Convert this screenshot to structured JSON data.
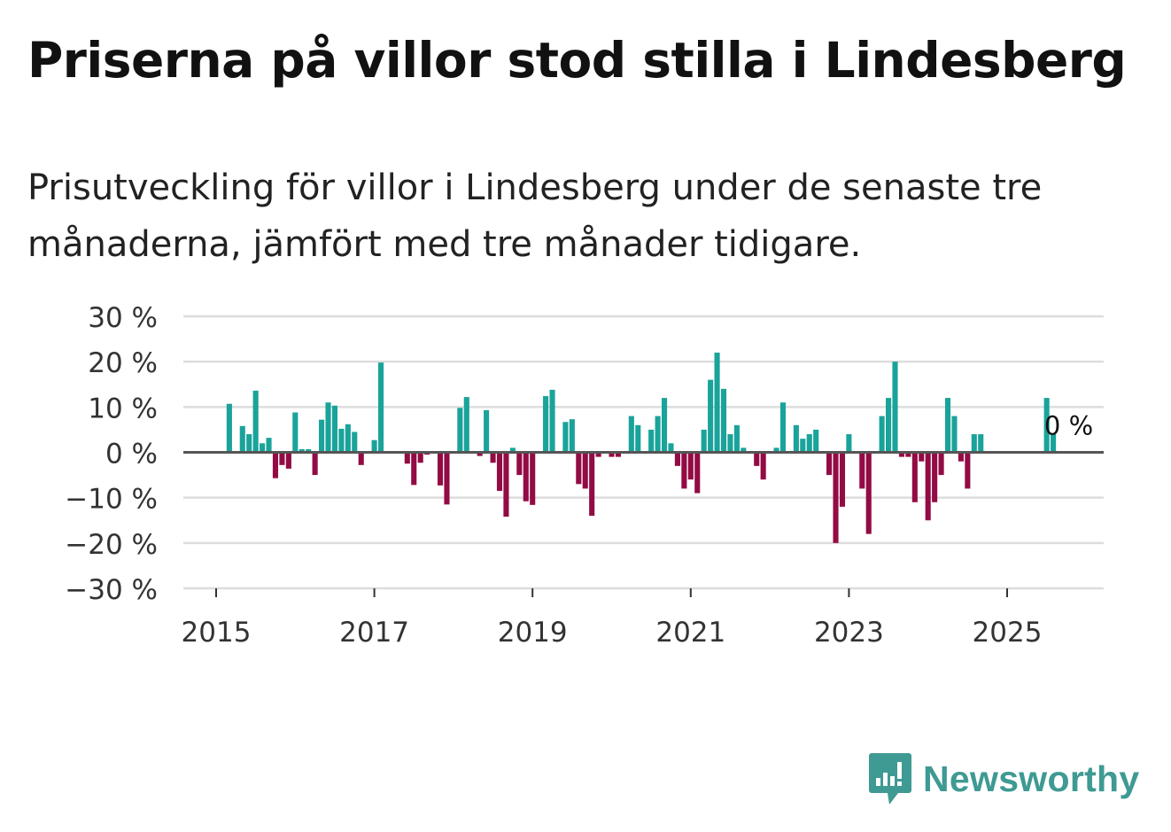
{
  "title": "Priserna på villor stod stilla i Lindesberg",
  "subtitle": "Prisutveckling för villor i Lindesberg under de senaste tre månaderna, jämfört med tre månader tidigare.",
  "brand": {
    "name": "Newsworthy"
  },
  "colors": {
    "positive": "#1aa39a",
    "negative": "#930b44",
    "grid": "#dddddd",
    "zero_line": "#555555",
    "brand": "#3e9a93"
  },
  "chart_data": {
    "type": "bar",
    "title": "Prisutveckling för villor i Lindesberg",
    "ylim": [
      -30,
      30
    ],
    "y_ticks": [
      {
        "value": 30,
        "label": "30 %"
      },
      {
        "value": 20,
        "label": "20 %"
      },
      {
        "value": 10,
        "label": "10 %"
      },
      {
        "value": 0,
        "label": "0 %"
      },
      {
        "value": -10,
        "label": "−10 %"
      },
      {
        "value": -20,
        "label": "−20 %"
      },
      {
        "value": -30,
        "label": "−30 %"
      }
    ],
    "x_ticks": [
      {
        "year": 2015,
        "label": "2015"
      },
      {
        "year": 2017,
        "label": "2017"
      },
      {
        "year": 2019,
        "label": "2019"
      },
      {
        "year": 2021,
        "label": "2021"
      },
      {
        "year": 2023,
        "label": "2023"
      },
      {
        "year": 2025,
        "label": "2025"
      }
    ],
    "last_value_label": "0 %",
    "series": [
      {
        "name": "Prisutveckling",
        "points": [
          {
            "month": "2015-03",
            "value": 10.7
          },
          {
            "month": "2015-05",
            "value": 5.8
          },
          {
            "month": "2015-06",
            "value": 4.0
          },
          {
            "month": "2015-07",
            "value": 13.6
          },
          {
            "month": "2015-08",
            "value": 2.0
          },
          {
            "month": "2015-09",
            "value": 3.2
          },
          {
            "month": "2015-10",
            "value": -5.7
          },
          {
            "month": "2015-11",
            "value": -2.8
          },
          {
            "month": "2015-12",
            "value": -3.6
          },
          {
            "month": "2016-01",
            "value": 8.8
          },
          {
            "month": "2016-02",
            "value": 0.7
          },
          {
            "month": "2016-03",
            "value": 0.7
          },
          {
            "month": "2016-04",
            "value": -5.0
          },
          {
            "month": "2016-05",
            "value": 7.2
          },
          {
            "month": "2016-06",
            "value": 11.0
          },
          {
            "month": "2016-07",
            "value": 10.3
          },
          {
            "month": "2016-08",
            "value": 5.2
          },
          {
            "month": "2016-09",
            "value": 6.2
          },
          {
            "month": "2016-10",
            "value": 4.5
          },
          {
            "month": "2016-11",
            "value": -2.8
          },
          {
            "month": "2017-01",
            "value": 2.7
          },
          {
            "month": "2017-02",
            "value": 19.8
          },
          {
            "month": "2017-06",
            "value": -2.5
          },
          {
            "month": "2017-07",
            "value": -7.2
          },
          {
            "month": "2017-08",
            "value": -2.3
          },
          {
            "month": "2017-09",
            "value": -0.5
          },
          {
            "month": "2017-11",
            "value": -7.3
          },
          {
            "month": "2017-12",
            "value": -11.5
          },
          {
            "month": "2018-02",
            "value": 9.8
          },
          {
            "month": "2018-03",
            "value": 12.2
          },
          {
            "month": "2018-05",
            "value": -0.8
          },
          {
            "month": "2018-06",
            "value": 9.3
          },
          {
            "month": "2018-07",
            "value": -2.3
          },
          {
            "month": "2018-08",
            "value": -8.5
          },
          {
            "month": "2018-09",
            "value": -14.2
          },
          {
            "month": "2018-10",
            "value": 1.0
          },
          {
            "month": "2018-11",
            "value": -5.0
          },
          {
            "month": "2018-12",
            "value": -10.8
          },
          {
            "month": "2019-01",
            "value": -11.6
          },
          {
            "month": "2019-03",
            "value": 12.4
          },
          {
            "month": "2019-04",
            "value": 13.8
          },
          {
            "month": "2019-06",
            "value": 6.7
          },
          {
            "month": "2019-07",
            "value": 7.3
          },
          {
            "month": "2019-08",
            "value": -7.0
          },
          {
            "month": "2019-09",
            "value": -8.0
          },
          {
            "month": "2019-10",
            "value": -14.0
          },
          {
            "month": "2019-11",
            "value": -1.0
          },
          {
            "month": "2020-01",
            "value": -1.0
          },
          {
            "month": "2020-02",
            "value": -1.0
          },
          {
            "month": "2020-04",
            "value": 8.0
          },
          {
            "month": "2020-05",
            "value": 6.0
          },
          {
            "month": "2020-07",
            "value": 5.0
          },
          {
            "month": "2020-08",
            "value": 8.0
          },
          {
            "month": "2020-09",
            "value": 12.0
          },
          {
            "month": "2020-10",
            "value": 2.0
          },
          {
            "month": "2020-11",
            "value": -3.0
          },
          {
            "month": "2020-12",
            "value": -8.0
          },
          {
            "month": "2021-01",
            "value": -6.0
          },
          {
            "month": "2021-02",
            "value": -9.0
          },
          {
            "month": "2021-03",
            "value": 5.0
          },
          {
            "month": "2021-04",
            "value": 16.0
          },
          {
            "month": "2021-05",
            "value": 22.0
          },
          {
            "month": "2021-06",
            "value": 14.0
          },
          {
            "month": "2021-07",
            "value": 4.0
          },
          {
            "month": "2021-08",
            "value": 6.0
          },
          {
            "month": "2021-09",
            "value": 1.0
          },
          {
            "month": "2021-11",
            "value": -3.0
          },
          {
            "month": "2021-12",
            "value": -6.0
          },
          {
            "month": "2022-02",
            "value": 1.0
          },
          {
            "month": "2022-03",
            "value": 11.0
          },
          {
            "month": "2022-05",
            "value": 6.0
          },
          {
            "month": "2022-06",
            "value": 3.0
          },
          {
            "month": "2022-07",
            "value": 4.0
          },
          {
            "month": "2022-08",
            "value": 5.0
          },
          {
            "month": "2022-10",
            "value": -5.0
          },
          {
            "month": "2022-11",
            "value": -20.0
          },
          {
            "month": "2022-12",
            "value": -12.0
          },
          {
            "month": "2023-01",
            "value": 4.0
          },
          {
            "month": "2023-03",
            "value": -8.0
          },
          {
            "month": "2023-04",
            "value": -18.0
          },
          {
            "month": "2023-06",
            "value": 8.0
          },
          {
            "month": "2023-07",
            "value": 12.0
          },
          {
            "month": "2023-08",
            "value": 20.0
          },
          {
            "month": "2023-09",
            "value": -1.0
          },
          {
            "month": "2023-10",
            "value": -1.0
          },
          {
            "month": "2023-11",
            "value": -11.0
          },
          {
            "month": "2023-12",
            "value": -2.0
          },
          {
            "month": "2024-01",
            "value": -15.0
          },
          {
            "month": "2024-02",
            "value": -11.0
          },
          {
            "month": "2024-03",
            "value": -5.0
          },
          {
            "month": "2024-04",
            "value": 12.0
          },
          {
            "month": "2024-05",
            "value": 8.0
          },
          {
            "month": "2024-06",
            "value": -2.0
          },
          {
            "month": "2024-07",
            "value": -8.0
          },
          {
            "month": "2024-08",
            "value": 4.0
          },
          {
            "month": "2024-09",
            "value": 4.0
          },
          {
            "month": "2025-07",
            "value": 12.0
          },
          {
            "month": "2025-08",
            "value": 4.0
          },
          {
            "month": "2025-09",
            "value": 0.0
          }
        ]
      }
    ]
  }
}
